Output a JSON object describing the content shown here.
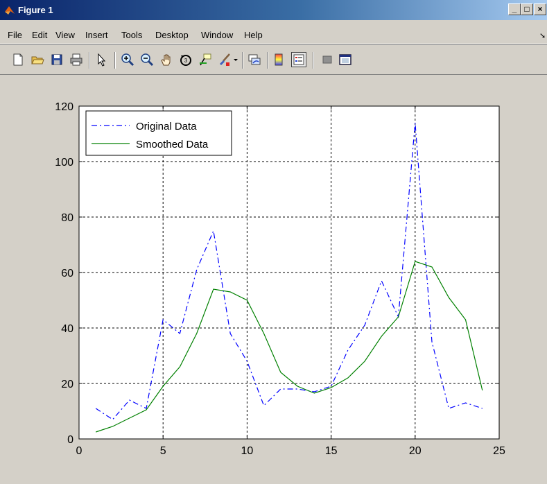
{
  "window": {
    "title": "Figure 1"
  },
  "menu": {
    "items": [
      "File",
      "Edit",
      "View",
      "Insert",
      "Tools",
      "Desktop",
      "Window",
      "Help"
    ]
  },
  "toolbar": {
    "icons": [
      "new-figure-icon",
      "open-file-icon",
      "save-icon",
      "print-icon",
      "edit-plot-icon",
      "zoom-in-icon",
      "zoom-out-icon",
      "pan-icon",
      "rotate-3d-icon",
      "data-cursor-icon",
      "brush-icon",
      "brush-dropdown-icon",
      "link-plot-icon",
      "colorbar-icon",
      "legend-icon",
      "hide-plot-tools-icon",
      "show-plot-tools-icon"
    ]
  },
  "colors": {
    "original": "#0000ff",
    "smoothed": "#008000",
    "titlebar": "#0a246a"
  },
  "chart_data": {
    "type": "line",
    "title": "",
    "xlabel": "",
    "ylabel": "",
    "xlim": [
      0,
      25
    ],
    "ylim": [
      0,
      120
    ],
    "xticks": [
      0,
      5,
      10,
      15,
      20,
      25
    ],
    "yticks": [
      0,
      20,
      40,
      60,
      80,
      100,
      120
    ],
    "grid": true,
    "legend_position": "top-left",
    "series": [
      {
        "name": "Original Data",
        "style": "dash-dot",
        "color": "#0000ff",
        "x": [
          1,
          2,
          3,
          4,
          5,
          6,
          7,
          8,
          9,
          10,
          11,
          12,
          13,
          14,
          15,
          16,
          17,
          18,
          19,
          20,
          21,
          22,
          23,
          24
        ],
        "y": [
          11,
          7,
          14,
          11,
          43,
          38,
          61,
          75,
          38,
          28,
          12,
          18,
          18,
          17,
          19,
          32,
          41,
          57,
          44,
          114,
          35,
          11,
          13,
          11
        ]
      },
      {
        "name": "Smoothed Data",
        "style": "solid",
        "color": "#008000",
        "x": [
          1,
          2,
          3,
          4,
          5,
          6,
          7,
          8,
          9,
          10,
          11,
          12,
          13,
          14,
          15,
          16,
          17,
          18,
          19,
          20,
          21,
          22,
          23,
          24
        ],
        "y": [
          2.5,
          4.5,
          7.5,
          10.5,
          19,
          26,
          38,
          54,
          53,
          50,
          38,
          24,
          19,
          16.5,
          18.5,
          22,
          28,
          37,
          44,
          64,
          62,
          51,
          43,
          17.5
        ]
      }
    ]
  }
}
